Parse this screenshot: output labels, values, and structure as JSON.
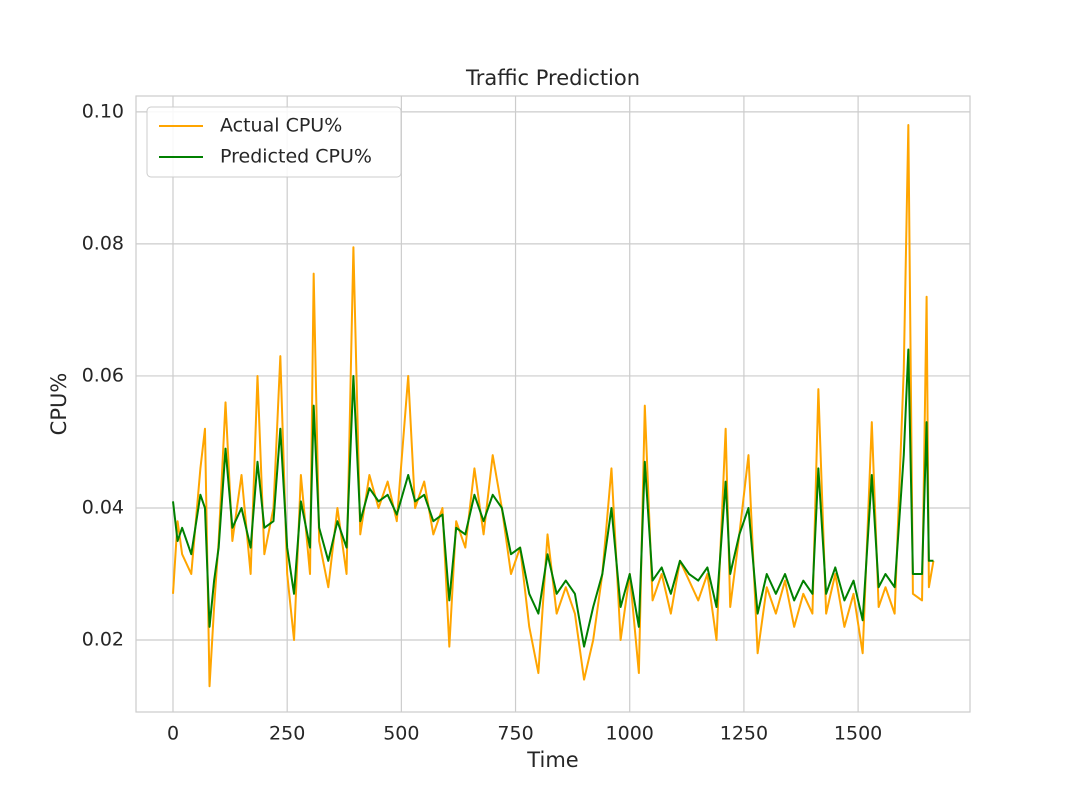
{
  "chart_data": {
    "type": "line",
    "title": "Traffic Prediction",
    "x_label": "Time",
    "y_label": "CPU%",
    "xlim": [
      -81,
      1745
    ],
    "ylim": [
      0.0091,
      0.1024
    ],
    "xticks": [
      0,
      250,
      500,
      750,
      1000,
      1250,
      1500
    ],
    "yticks": [
      0.02,
      0.04,
      0.06,
      0.08,
      {
        "value": 0.1,
        "label": "0.10"
      }
    ],
    "grid": true,
    "legend": "upper-left",
    "x": [
      0,
      10,
      20,
      40,
      60,
      70,
      80,
      90,
      100,
      115,
      130,
      150,
      170,
      185,
      200,
      220,
      235,
      250,
      265,
      280,
      300,
      308,
      320,
      340,
      360,
      380,
      395,
      410,
      430,
      450,
      470,
      490,
      515,
      530,
      550,
      570,
      590,
      605,
      620,
      640,
      660,
      680,
      700,
      720,
      740,
      760,
      780,
      800,
      820,
      840,
      860,
      880,
      900,
      920,
      940,
      960,
      980,
      1000,
      1020,
      1033,
      1050,
      1070,
      1090,
      1110,
      1130,
      1150,
      1170,
      1190,
      1210,
      1220,
      1240,
      1260,
      1280,
      1300,
      1320,
      1340,
      1360,
      1380,
      1400,
      1413,
      1430,
      1450,
      1470,
      1490,
      1510,
      1530,
      1545,
      1560,
      1580,
      1600,
      1610,
      1620,
      1640,
      1650,
      1655,
      1665
    ],
    "series": [
      {
        "name": "Actual CPU%",
        "color": "#ffa500",
        "values": [
          0.027,
          0.038,
          0.033,
          0.03,
          0.046,
          0.052,
          0.013,
          0.025,
          0.035,
          0.056,
          0.035,
          0.045,
          0.03,
          0.06,
          0.033,
          0.04,
          0.063,
          0.03,
          0.02,
          0.045,
          0.03,
          0.0755,
          0.035,
          0.028,
          0.04,
          0.03,
          0.0795,
          0.036,
          0.045,
          0.04,
          0.044,
          0.038,
          0.06,
          0.04,
          0.044,
          0.036,
          0.04,
          0.019,
          0.038,
          0.034,
          0.046,
          0.036,
          0.048,
          0.04,
          0.03,
          0.034,
          0.022,
          0.015,
          0.036,
          0.024,
          0.028,
          0.024,
          0.014,
          0.02,
          0.03,
          0.046,
          0.02,
          0.03,
          0.015,
          0.0555,
          0.026,
          0.03,
          0.024,
          0.032,
          0.029,
          0.026,
          0.03,
          0.02,
          0.052,
          0.025,
          0.036,
          0.048,
          0.018,
          0.028,
          0.024,
          0.029,
          0.022,
          0.027,
          0.024,
          0.058,
          0.024,
          0.03,
          0.022,
          0.027,
          0.018,
          0.053,
          0.025,
          0.028,
          0.024,
          0.061,
          0.098,
          0.027,
          0.026,
          0.072,
          0.028,
          0.032
        ]
      },
      {
        "name": "Predicted CPU%",
        "color": "#008000",
        "values": [
          0.041,
          0.035,
          0.037,
          0.033,
          0.042,
          0.04,
          0.022,
          0.029,
          0.034,
          0.049,
          0.037,
          0.04,
          0.034,
          0.047,
          0.037,
          0.038,
          0.052,
          0.034,
          0.027,
          0.041,
          0.034,
          0.0555,
          0.037,
          0.032,
          0.038,
          0.034,
          0.06,
          0.038,
          0.043,
          0.041,
          0.042,
          0.039,
          0.045,
          0.041,
          0.042,
          0.038,
          0.039,
          0.026,
          0.037,
          0.036,
          0.042,
          0.038,
          0.042,
          0.04,
          0.033,
          0.034,
          0.027,
          0.024,
          0.033,
          0.027,
          0.029,
          0.027,
          0.019,
          0.025,
          0.03,
          0.04,
          0.025,
          0.03,
          0.022,
          0.047,
          0.029,
          0.031,
          0.027,
          0.032,
          0.03,
          0.029,
          0.031,
          0.025,
          0.044,
          0.03,
          0.036,
          0.04,
          0.024,
          0.03,
          0.027,
          0.03,
          0.026,
          0.029,
          0.027,
          0.046,
          0.027,
          0.031,
          0.026,
          0.029,
          0.023,
          0.045,
          0.028,
          0.03,
          0.028,
          0.048,
          0.064,
          0.03,
          0.03,
          0.053,
          0.032,
          0.032
        ]
      }
    ]
  }
}
